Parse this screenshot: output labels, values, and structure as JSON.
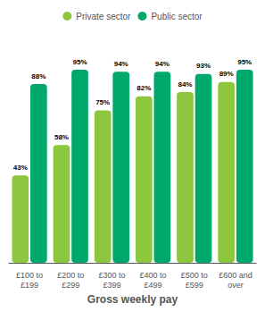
{
  "chart_data": {
    "type": "bar",
    "categories": [
      "£100 to\n£199",
      "£200 to\n£299",
      "£300 to\n£399",
      "£400 to\n£499",
      "£500 to\n£599",
      "£600 and\nover"
    ],
    "series": [
      {
        "name": "Private sector",
        "color": "#8dc63f",
        "values": [
          43,
          58,
          75,
          82,
          84,
          89
        ],
        "value_labels": [
          "43%",
          "58%",
          "75%",
          "82%",
          "84%",
          "89%"
        ]
      },
      {
        "name": "Public sector",
        "color": "#00a86b",
        "values": [
          88,
          95,
          94,
          94,
          93,
          95
        ],
        "value_labels": [
          "88%",
          "95%",
          "94%",
          "94%",
          "93%",
          "95%"
        ]
      }
    ],
    "xlabel": "Gross weekly pay",
    "ylim": [
      0,
      110
    ],
    "data_labels": true,
    "tick_labels": "x",
    "grid": false,
    "legend": "top"
  }
}
